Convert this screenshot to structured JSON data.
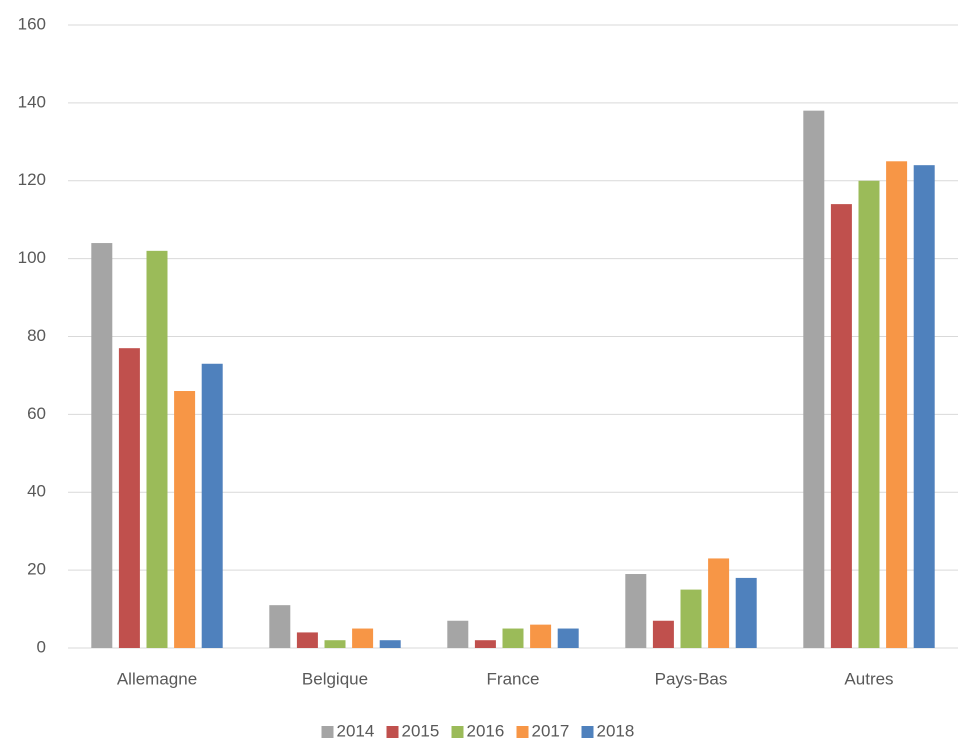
{
  "chart_data": {
    "type": "bar",
    "categories": [
      "Allemagne",
      "Belgique",
      "France",
      "Pays-Bas",
      "Autres"
    ],
    "series": [
      {
        "name": "2014",
        "color": "#a5a5a5",
        "values": [
          104,
          11,
          7,
          19,
          138
        ]
      },
      {
        "name": "2015",
        "color": "#c0504d",
        "values": [
          77,
          4,
          2,
          7,
          114
        ]
      },
      {
        "name": "2016",
        "color": "#9bbb59",
        "values": [
          102,
          2,
          5,
          15,
          120
        ]
      },
      {
        "name": "2017",
        "color": "#f79646",
        "values": [
          66,
          5,
          6,
          23,
          125
        ]
      },
      {
        "name": "2018",
        "color": "#4f81bd",
        "values": [
          73,
          2,
          5,
          18,
          124
        ]
      }
    ],
    "ylim": [
      0,
      160
    ],
    "yticks": [
      0,
      20,
      40,
      60,
      80,
      100,
      120,
      140,
      160
    ],
    "grid": true,
    "legend": "bottom"
  }
}
